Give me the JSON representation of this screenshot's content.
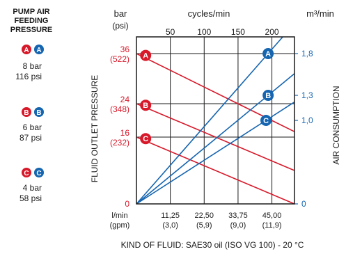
{
  "legend": {
    "title_lines": [
      "PUMP AIR",
      "FEEDING",
      "PRESSURE"
    ],
    "groups": [
      {
        "letter": "A",
        "bar": "8 bar",
        "psi": "116 psi"
      },
      {
        "letter": "B",
        "bar": "6 bar",
        "psi": "87 psi"
      },
      {
        "letter": "C",
        "bar": "4 bar",
        "psi": "58 psi"
      }
    ]
  },
  "colors": {
    "pressure": "#d7192a",
    "air": "#1565b0",
    "axis": "#1a1a1a"
  },
  "chart_data": {
    "type": "line",
    "xlabel": "l/min",
    "xlabel_alt": "(gpm)",
    "x_top_label": "cycles/min",
    "y_left_unit": "bar",
    "y_left_unit_alt": "(psi)",
    "y_left_title": "FLUID OUTLET PRESSURE",
    "y_right_unit": "m³/min",
    "y_right_title": "AIR CONSUMPTION",
    "footer": "KIND OF FLUID: SAE30 oil (ISO VG 100) - 20 °C",
    "xlim": [
      0,
      52.5
    ],
    "x_ticks": [
      {
        "value": 11.25,
        "label": "11,25",
        "alt": "(3,0)"
      },
      {
        "value": 22.5,
        "label": "22,50",
        "alt": "(5,9)"
      },
      {
        "value": 33.75,
        "label": "33,75",
        "alt": "(9,0)"
      },
      {
        "value": 45.0,
        "label": "45,00",
        "alt": "(11,9)"
      }
    ],
    "cycles_ticks": [
      {
        "value": 50,
        "label": "50"
      },
      {
        "value": 100,
        "label": "100"
      },
      {
        "value": 150,
        "label": "150"
      },
      {
        "value": 200,
        "label": "200"
      }
    ],
    "cycles_max": 233.33,
    "ylim_left": [
      0,
      40
    ],
    "y_left_ticks": [
      {
        "value": 0,
        "label": "0",
        "alt": ""
      },
      {
        "value": 16,
        "label": "16",
        "alt": "(232)"
      },
      {
        "value": 24,
        "label": "24",
        "alt": "(348)"
      },
      {
        "value": 36,
        "label": "36",
        "alt": "(522)"
      }
    ],
    "ylim_right": [
      0,
      2.0
    ],
    "y_right_ticks": [
      {
        "value": 0,
        "label": "0"
      },
      {
        "value": 1.0,
        "label": "1,0"
      },
      {
        "value": 1.3,
        "label": "1,3"
      },
      {
        "value": 1.8,
        "label": "1,8"
      }
    ],
    "pressure_series": [
      {
        "name": "A",
        "points": [
          [
            0,
            36
          ],
          [
            52.5,
            17.3
          ]
        ]
      },
      {
        "name": "B",
        "points": [
          [
            0,
            24
          ],
          [
            52.5,
            8.0
          ]
        ]
      },
      {
        "name": "C",
        "points": [
          [
            0,
            16
          ],
          [
            52.5,
            0
          ]
        ]
      }
    ],
    "air_series": [
      {
        "name": "A",
        "points": [
          [
            0,
            0
          ],
          [
            48.6,
            2.0
          ]
        ]
      },
      {
        "name": "B",
        "points": [
          [
            0,
            0
          ],
          [
            52.5,
            1.56
          ]
        ]
      },
      {
        "name": "C",
        "points": [
          [
            0,
            0
          ],
          [
            52.5,
            1.22
          ]
        ]
      }
    ],
    "grid": true
  }
}
